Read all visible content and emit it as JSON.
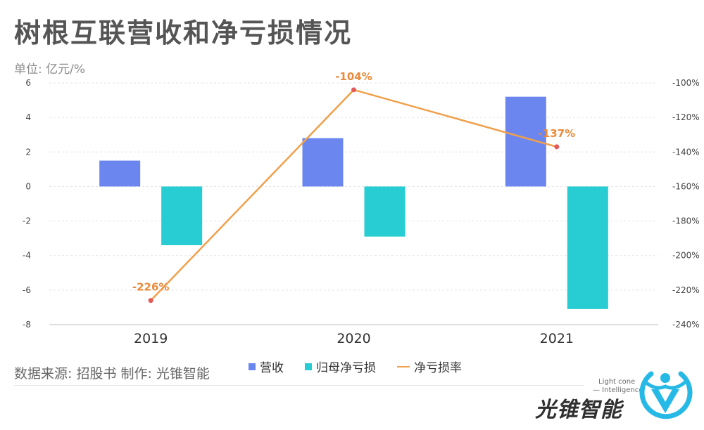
{
  "title": "树根互联营收和净亏损情况",
  "unit_label": "单位: 亿元/%",
  "legend": {
    "revenue": "营收",
    "net_loss": "归母净亏损",
    "loss_rate": "净亏损率"
  },
  "source": "数据来源: 招股书 制作:  光锥智能",
  "brand": {
    "name": "光锥智能",
    "tagline_1": "Light cone",
    "tagline_2": "— Intelligence"
  },
  "colors": {
    "revenue": "#6b86ee",
    "net_loss": "#27cdd3",
    "loss_rate_line": "#f0a04b",
    "loss_rate_point": "#e45a5a",
    "loss_rate_label": "#ea8a3a",
    "logo": "#27b9e6"
  },
  "chart_data": {
    "type": "bar",
    "categories": [
      "2019",
      "2020",
      "2021"
    ],
    "series": [
      {
        "name": "营收",
        "type": "bar",
        "axis": "left",
        "values": [
          1.5,
          2.8,
          5.2
        ]
      },
      {
        "name": "归母净亏损",
        "type": "bar",
        "axis": "left",
        "values": [
          -3.4,
          -2.9,
          -7.1
        ]
      },
      {
        "name": "净亏损率",
        "type": "line",
        "axis": "right",
        "values": [
          -226,
          -104,
          -137
        ],
        "labels": [
          "-226%",
          "-104%",
          "-137%"
        ]
      }
    ],
    "y_left": {
      "min": -8,
      "max": 6,
      "ticks": [
        "6",
        "4",
        "2",
        "0",
        "-2",
        "-4",
        "-6",
        "-8"
      ],
      "tick_values": [
        6,
        4,
        2,
        0,
        -2,
        -4,
        -6,
        -8
      ]
    },
    "y_right": {
      "min": -240,
      "max": -100,
      "ticks": [
        "-100%",
        "-120%",
        "-140%",
        "-160%",
        "-180%",
        "-200%",
        "-220%",
        "-240%"
      ],
      "tick_values": [
        -100,
        -120,
        -140,
        -160,
        -180,
        -200,
        -220,
        -240
      ]
    },
    "grid": true,
    "legend_position": "bottom"
  }
}
